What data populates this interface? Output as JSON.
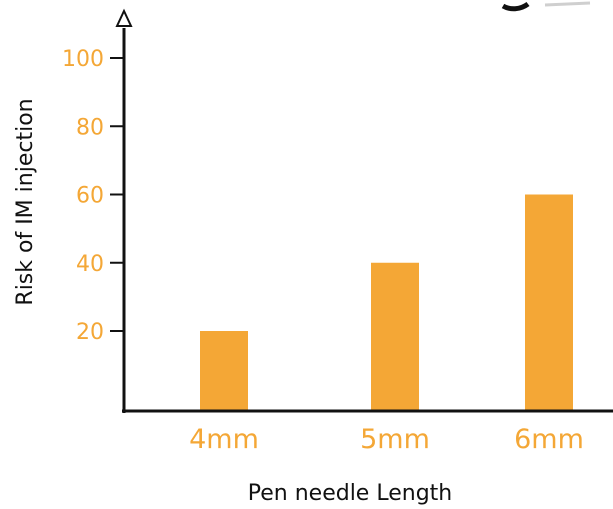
{
  "chart_data": {
    "type": "bar",
    "categories": [
      "4mm",
      "5mm",
      "6mm"
    ],
    "values": [
      20,
      40,
      60
    ],
    "xlabel": "Pen needle Length",
    "ylabel": "Risk of IM injection",
    "yticks": [
      20,
      40,
      60,
      80,
      100
    ],
    "ylim": [
      0,
      105
    ],
    "grid": false,
    "legend": "none"
  },
  "colors": {
    "bar": "#F4A736",
    "tick_text": "#F4A736",
    "axis": "#111111"
  }
}
